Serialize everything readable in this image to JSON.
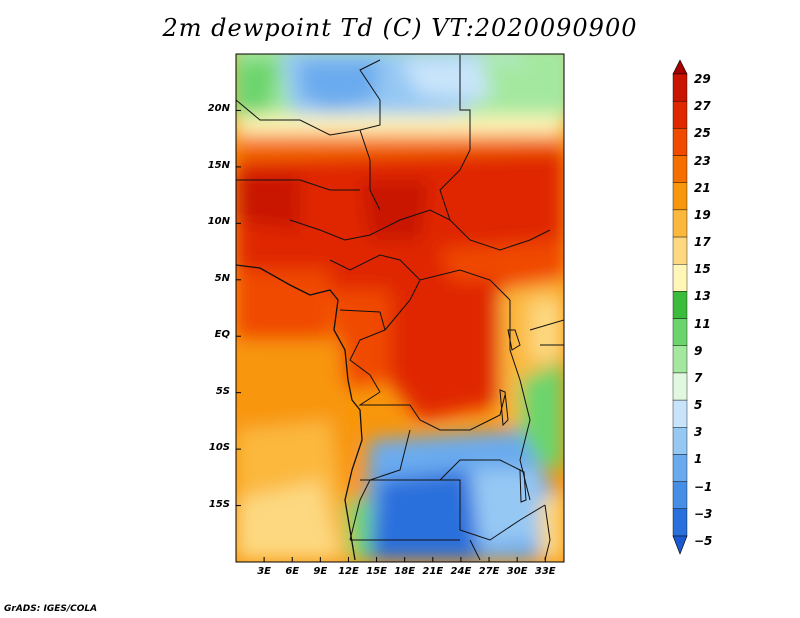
{
  "title": "2m dewpoint Td (C) VT:2020090900",
  "credit": "GrADS: IGES/COLA",
  "map": {
    "lon_range": [
      0,
      35
    ],
    "lat_range": [
      -20,
      25
    ],
    "lat_ticks": [
      "20N",
      "15N",
      "10N",
      "5N",
      "EQ",
      "5S",
      "10S",
      "15S"
    ],
    "lon_ticks": [
      "3E",
      "6E",
      "9E",
      "12E",
      "15E",
      "18E",
      "21E",
      "24E",
      "27E",
      "30E",
      "33E"
    ]
  },
  "colorbar": {
    "labels": [
      "29",
      "27",
      "25",
      "23",
      "21",
      "19",
      "17",
      "15",
      "13",
      "11",
      "9",
      "7",
      "5",
      "3",
      "1",
      "-1",
      "-3",
      "-5"
    ],
    "colors": [
      "#a50000",
      "#c81400",
      "#e02800",
      "#f04a00",
      "#f56e00",
      "#f8960c",
      "#fbb83c",
      "#fdd880",
      "#fff6b8",
      "#3cbc3c",
      "#6cd46c",
      "#a4e8a0",
      "#e0f8e0",
      "#c8e4fa",
      "#96c8f4",
      "#6aaaee",
      "#468ee6",
      "#2a70dc",
      "#1a5ad0"
    ]
  }
}
